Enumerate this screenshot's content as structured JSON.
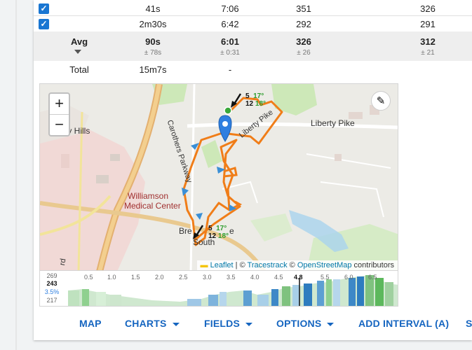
{
  "table": {
    "rows": [
      {
        "checked": true,
        "duration": "41s",
        "pace": "7:06",
        "power": "351",
        "value2": "326"
      },
      {
        "checked": true,
        "duration": "2m30s",
        "pace": "6:42",
        "power": "292",
        "value2": "291"
      }
    ],
    "avg": {
      "label": "Avg",
      "duration": "90s",
      "duration_sd": "± 78s",
      "pace": "6:01",
      "pace_sd": "± 0:31",
      "power": "326",
      "power_sd": "± 26",
      "value2": "312",
      "value2_sd": "± 21"
    },
    "total": {
      "label": "Total",
      "duration": "15m7s",
      "pace": "-"
    }
  },
  "map": {
    "labels": {
      "hills": "ty Hills",
      "carothers": "Carothers Parkway",
      "liberty_pike": "Liberty Pike",
      "liberty_pike_2": "Liberty Pike",
      "medical_1": "Williamson",
      "medical_2": "Medical Center",
      "south_1": "Bre",
      "south_2": "South",
      "south_3": "e",
      "rd": "rd"
    },
    "weather_top": {
      "a": "5",
      "b": "12",
      "t1": "17°",
      "t2": "18°"
    },
    "weather_bottom": {
      "a": "5",
      "b": "12",
      "t1": "17°",
      "t2": "18°"
    },
    "zoom_in": "+",
    "zoom_out": "−",
    "edit_icon": "pencil-icon",
    "attribution": {
      "leaflet": "Leaflet",
      "sep1": " | © ",
      "tracestrack": "Tracestrack",
      "sep2": " © ",
      "osm": "OpenStreetMap",
      "suffix": " contributors"
    },
    "colors": {
      "route": "#f07d18",
      "marker": "#2f7fe0",
      "start": "#3aa83a",
      "water": "#a9d3ee",
      "park": "#cde8b8"
    }
  },
  "elevation": {
    "y_top": "269",
    "y_value": "243",
    "y_grade": "3.5%",
    "y_bottom": "217",
    "x_ticks": [
      "0.5",
      "1.0",
      "1.5",
      "2.0",
      "2.5",
      "3.0",
      "3.5",
      "4.0",
      "4.5",
      "4.8",
      "5.5",
      "6.0",
      "6.5"
    ],
    "cursor": "4.8"
  },
  "nav": {
    "map": "MAP",
    "charts": "CHARTS",
    "fields": "FIELDS",
    "options": "OPTIONS",
    "add_interval": "ADD INTERVAL (A)",
    "more": "S"
  }
}
